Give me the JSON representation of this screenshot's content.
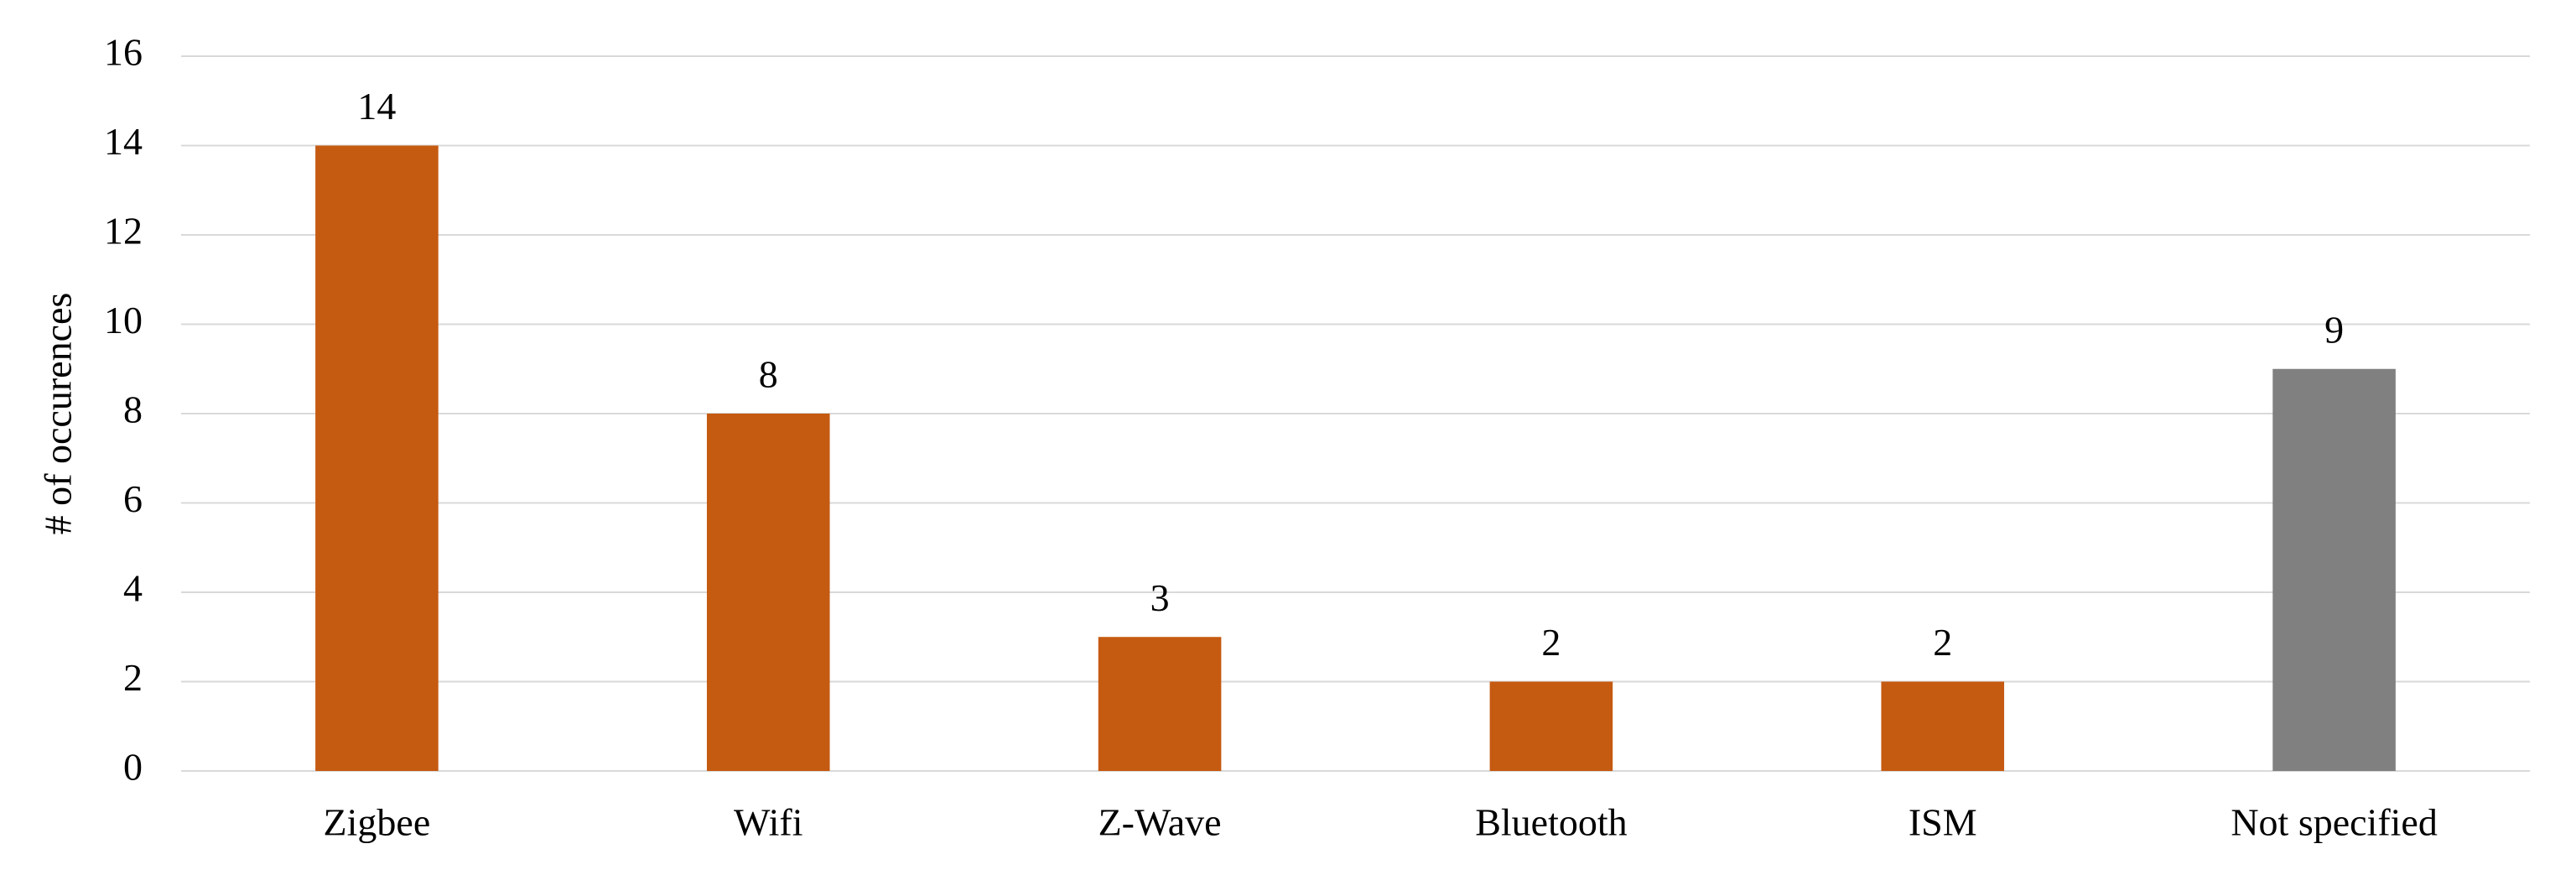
{
  "chart_data": {
    "type": "bar",
    "y_label": "# of occurences",
    "categories": [
      "Zigbee",
      "Wifi",
      "Z-Wave",
      "Bluetooth",
      "ISM",
      "Not specified"
    ],
    "values": [
      14,
      8,
      3,
      2,
      2,
      9
    ],
    "colors": [
      "#c55a11",
      "#c55a11",
      "#c55a11",
      "#c55a11",
      "#c55a11",
      "#808080"
    ],
    "ylim": [
      0,
      16
    ],
    "yticks": [
      0,
      2,
      4,
      6,
      8,
      10,
      12,
      14,
      16
    ],
    "grid": true
  }
}
